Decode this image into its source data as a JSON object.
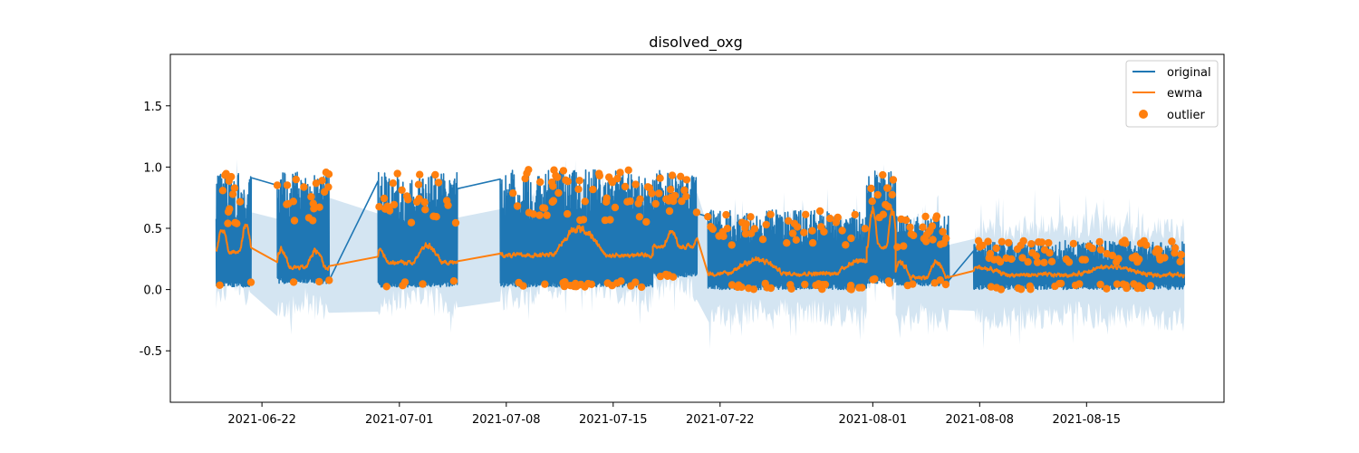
{
  "chart_data": {
    "type": "line",
    "title": "disolved_oxg",
    "xlabel": "",
    "ylabel": "",
    "xlim": [
      "2021-06-16",
      "2021-08-24"
    ],
    "ylim": [
      -0.92,
      1.92
    ],
    "x_ticks": [
      "2021-06-22",
      "2021-07-01",
      "2021-07-08",
      "2021-07-15",
      "2021-07-22",
      "2021-08-01",
      "2021-08-08",
      "2021-08-15"
    ],
    "y_ticks": [
      -0.5,
      0.0,
      0.5,
      1.0,
      1.5
    ],
    "y_tick_labels": [
      "-0.5",
      "0.0",
      "0.5",
      "1.0",
      "1.5"
    ],
    "legend_position": "top-right",
    "grid": false,
    "segments": [
      {
        "start": "2021-06-19",
        "end": "2021-06-21.3",
        "low": 0.02,
        "high": 0.95,
        "ewma": 0.3,
        "ewma_peak": 0.57
      },
      {
        "start": "2021-06-23.0",
        "end": "2021-06-26.4",
        "low": 0.05,
        "high": 0.97,
        "ewma": 0.18,
        "ewma_peak": 0.36
      },
      {
        "start": "2021-06-29.6",
        "end": "2021-07-04.8",
        "low": 0.02,
        "high": 0.96,
        "ewma": 0.22,
        "ewma_peak": 0.4
      },
      {
        "start": "2021-07-07.6",
        "end": "2021-07-17.6",
        "low": 0.02,
        "high": 0.98,
        "ewma": 0.28,
        "ewma_peak": 0.55
      },
      {
        "start": "2021-07-17.6",
        "end": "2021-07-20.5",
        "low": 0.1,
        "high": 0.98,
        "ewma": 0.35,
        "ewma_peak": 0.5
      },
      {
        "start": "2021-07-21.2",
        "end": "2021-07-31.6",
        "low": 0.0,
        "high": 0.65,
        "ewma": 0.13,
        "ewma_peak": 0.27
      },
      {
        "start": "2021-07-31.6",
        "end": "2021-08-02.5",
        "low": 0.05,
        "high": 0.98,
        "ewma": 0.35,
        "ewma_peak": 0.73
      },
      {
        "start": "2021-08-02.5",
        "end": "2021-08-06.0",
        "low": 0.03,
        "high": 0.6,
        "ewma": 0.1,
        "ewma_peak": 0.25
      },
      {
        "start": "2021-08-07.6",
        "end": "2021-08-21.4",
        "low": 0.0,
        "high": 0.4,
        "ewma": 0.12,
        "ewma_peak": 0.2
      }
    ],
    "series": [
      {
        "name": "original",
        "color": "#1f77b4",
        "kind": "line"
      },
      {
        "name": "ewma",
        "color": "#ff7f0e",
        "kind": "line"
      },
      {
        "name": "outlier",
        "color": "#ff7f0e",
        "kind": "scatter"
      }
    ],
    "band_color": "#c5dcee"
  }
}
